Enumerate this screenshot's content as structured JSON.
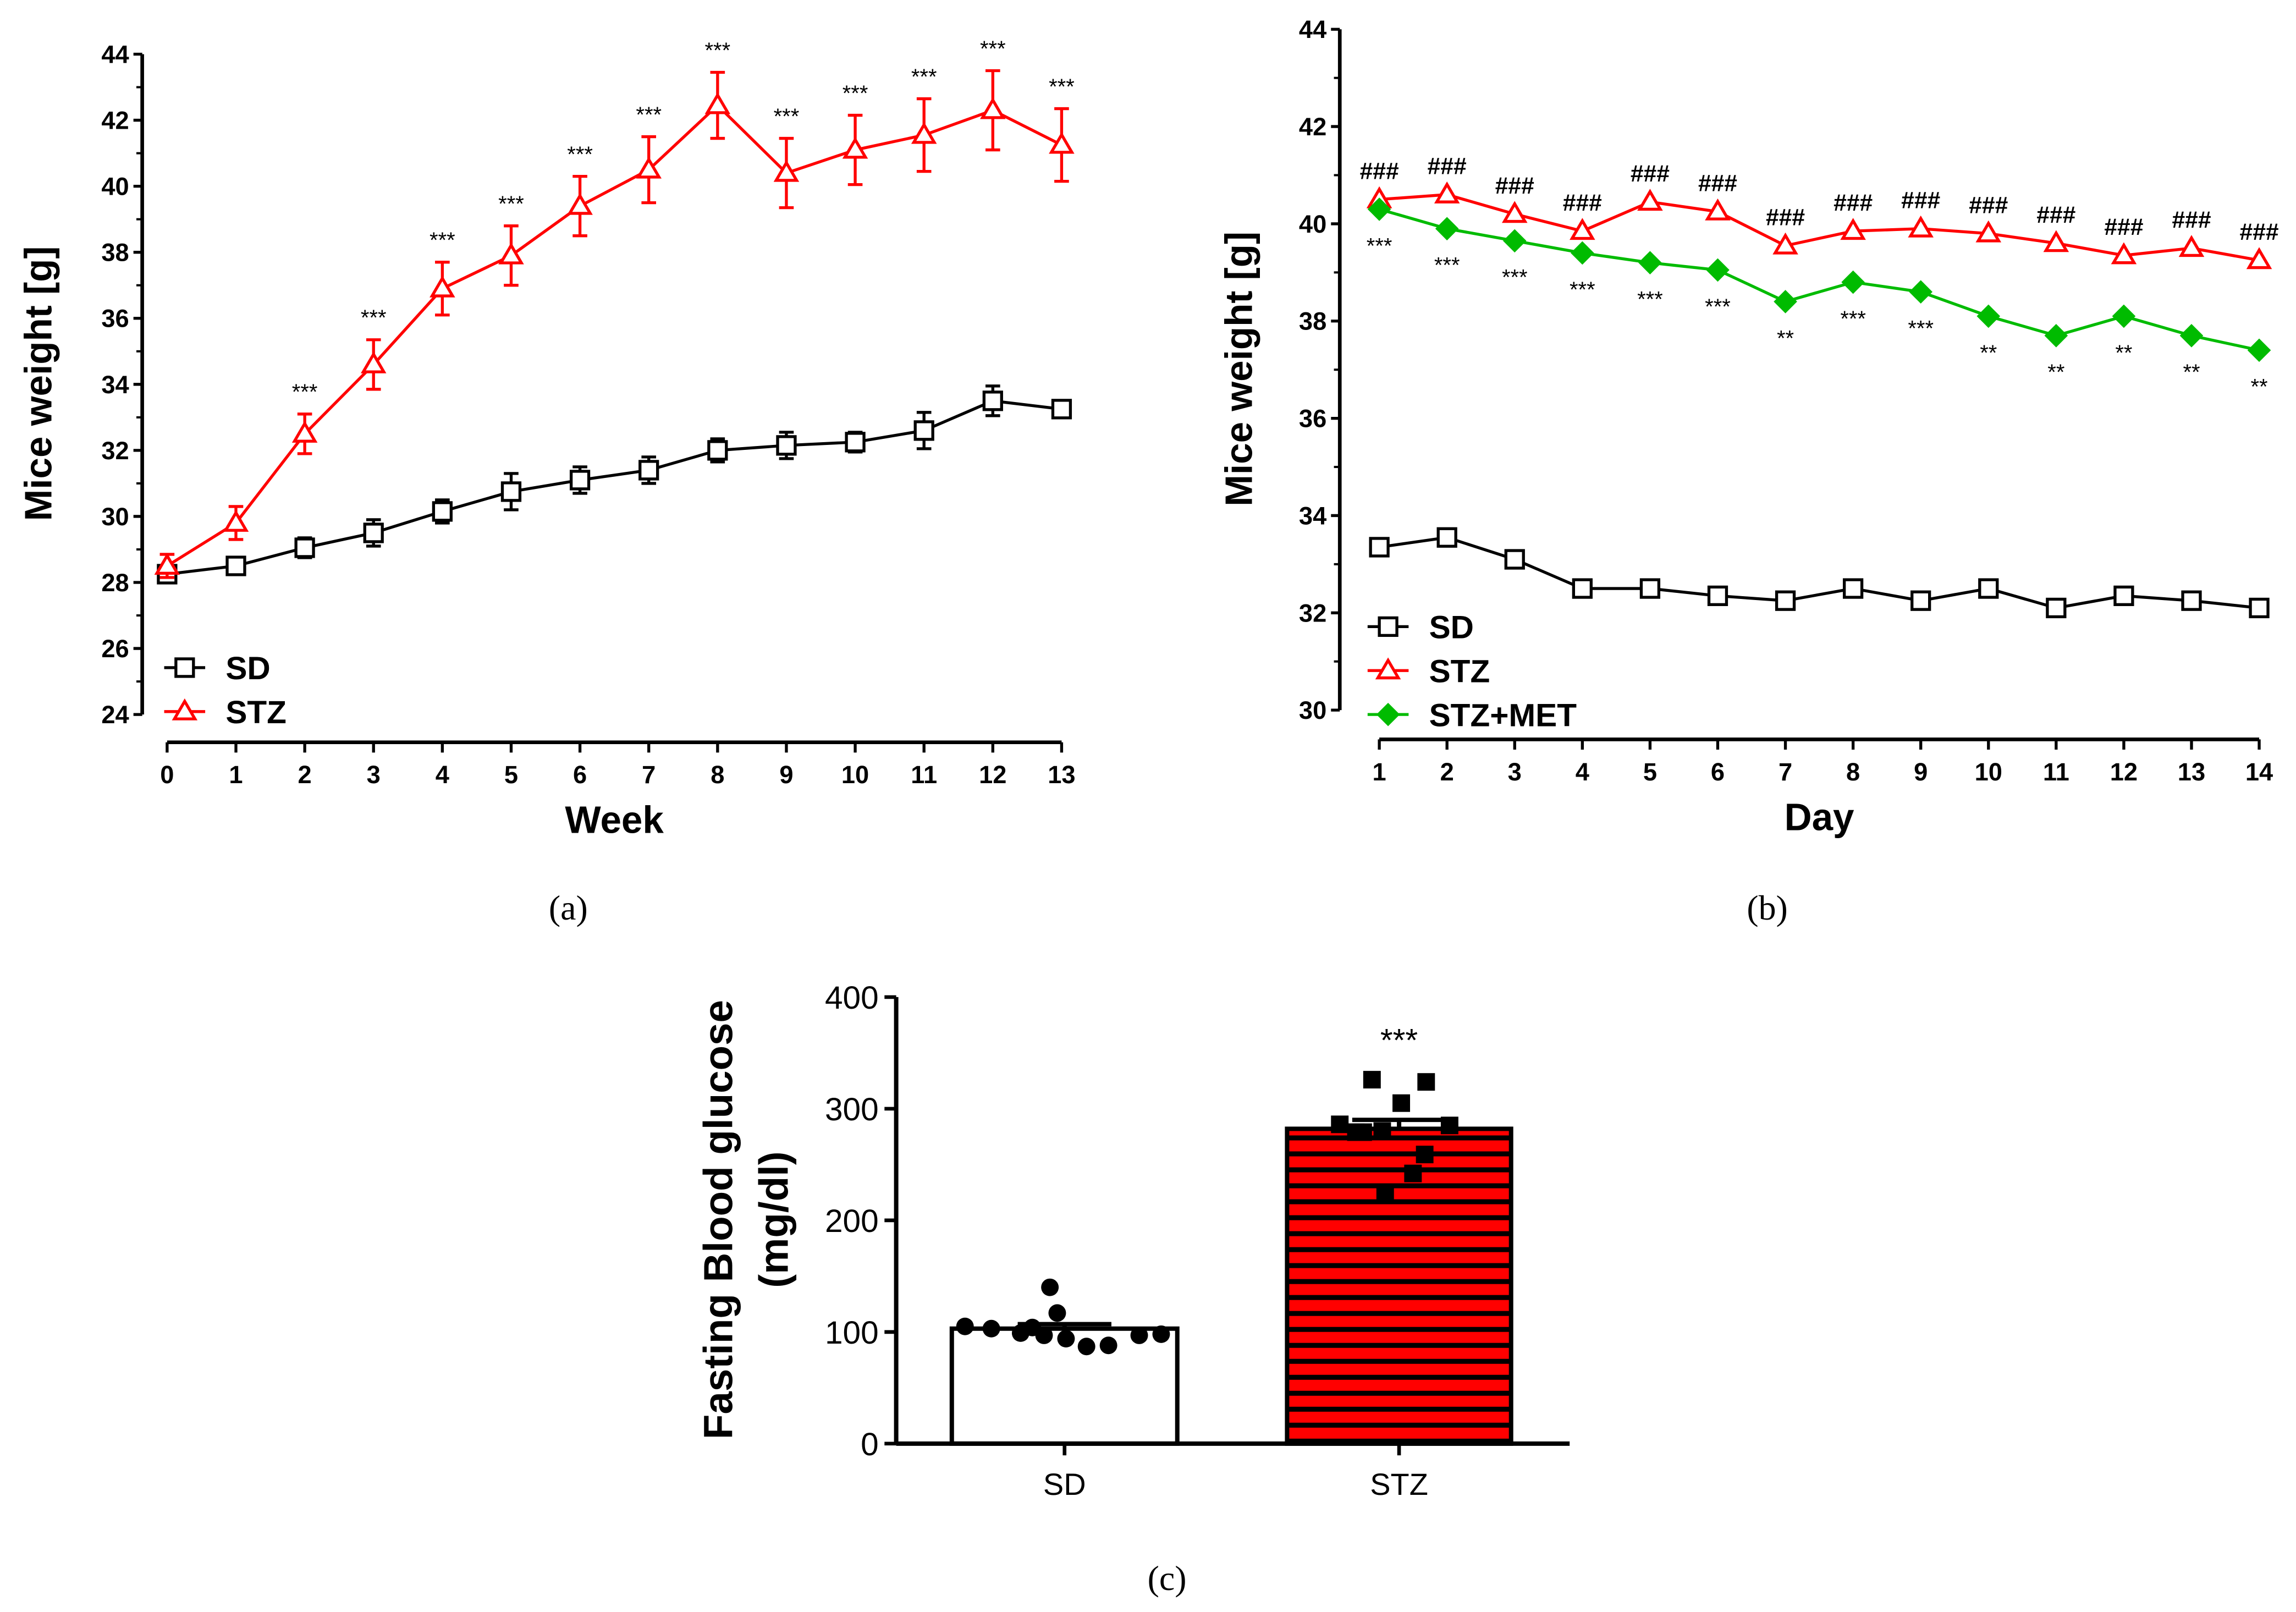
{
  "colors": {
    "sd": "#000000",
    "stz": "#ff0000",
    "met": "#00bb00"
  },
  "chart_data": [
    {
      "type": "line",
      "panel": "(a)",
      "title": "",
      "xlabel": "Week",
      "ylabel": "Mice weight [g]",
      "x": [
        0,
        1,
        2,
        3,
        4,
        5,
        6,
        7,
        8,
        9,
        10,
        11,
        12,
        13
      ],
      "xlim": [
        0,
        13
      ],
      "ylim": [
        24,
        44
      ],
      "yticks": [
        24,
        26,
        28,
        30,
        32,
        34,
        36,
        38,
        40,
        42,
        44
      ],
      "legend": "bottom-left",
      "series": [
        {
          "name": "SD",
          "marker": "open-square",
          "color": "#000000",
          "values": [
            28.25,
            28.5,
            29.05,
            29.5,
            30.15,
            30.75,
            31.1,
            31.4,
            32.0,
            32.15,
            32.25,
            32.6,
            33.5,
            33.25
          ],
          "errors": [
            0.25,
            0.15,
            0.3,
            0.4,
            0.35,
            0.55,
            0.4,
            0.4,
            0.35,
            0.4,
            0.3,
            0.55,
            0.45,
            0.25
          ]
        },
        {
          "name": "STZ",
          "marker": "open-triangle",
          "color": "#ff0000",
          "values": [
            28.5,
            29.8,
            32.5,
            34.6,
            36.9,
            37.9,
            39.4,
            40.5,
            42.45,
            40.4,
            41.1,
            41.55,
            42.3,
            41.25
          ],
          "errors": [
            0.35,
            0.5,
            0.6,
            0.75,
            0.8,
            0.9,
            0.9,
            1.0,
            1.0,
            1.05,
            1.05,
            1.1,
            1.2,
            1.1
          ]
        }
      ],
      "annotations": [
        "",
        "",
        "***",
        "***",
        "***",
        "***",
        "***",
        "***",
        "***",
        "***",
        "***",
        "***",
        "***",
        "***"
      ]
    },
    {
      "type": "line",
      "panel": "(b)",
      "title": "",
      "xlabel": "Day",
      "ylabel": "Mice weight [g]",
      "x": [
        1,
        2,
        3,
        4,
        5,
        6,
        7,
        8,
        9,
        10,
        11,
        12,
        13,
        14
      ],
      "xlim": [
        1,
        14
      ],
      "ylim": [
        30,
        44
      ],
      "yticks": [
        30,
        32,
        34,
        36,
        38,
        40,
        42,
        44
      ],
      "legend": "bottom-left",
      "series": [
        {
          "name": "SD",
          "marker": "open-square",
          "color": "#000000",
          "values": [
            33.35,
            33.55,
            33.1,
            32.5,
            32.5,
            32.35,
            32.25,
            32.5,
            32.25,
            32.5,
            32.1,
            32.35,
            32.25,
            32.1
          ]
        },
        {
          "name": "STZ",
          "marker": "open-triangle",
          "color": "#ff0000",
          "values": [
            40.5,
            40.6,
            40.2,
            39.85,
            40.45,
            40.25,
            39.55,
            39.85,
            39.9,
            39.8,
            39.6,
            39.35,
            39.5,
            39.25
          ]
        },
        {
          "name": "STZ+MET",
          "marker": "filled-diamond",
          "color": "#00bb00",
          "values": [
            40.3,
            39.9,
            39.65,
            39.4,
            39.2,
            39.05,
            38.4,
            38.8,
            38.6,
            38.1,
            37.7,
            38.1,
            37.7,
            37.4
          ]
        }
      ],
      "hash_annotations": [
        "###",
        "###",
        "###",
        "###",
        "###",
        "###",
        "###",
        "###",
        "###",
        "###",
        "###",
        "###",
        "###",
        "###"
      ],
      "star_annotations": [
        "***",
        "***",
        "***",
        "***",
        "***",
        "***",
        "**",
        "***",
        "***",
        "**",
        "**",
        "**",
        "**",
        "**"
      ]
    },
    {
      "type": "bar",
      "panel": "(c)",
      "title": "",
      "xlabel": "",
      "ylabel": "Fasting Blood glucose",
      "ylabel2": "(mg/dl)",
      "categories": [
        "SD",
        "STZ"
      ],
      "values": [
        103,
        282
      ],
      "errors": [
        4,
        8
      ],
      "ylim": [
        0,
        400
      ],
      "yticks": [
        0,
        100,
        200,
        300,
        400
      ],
      "points": [
        [
          105,
          103,
          99,
          97,
          94,
          87,
          88,
          97,
          98,
          104,
          140,
          117
        ],
        [
          326,
          324,
          305,
          286,
          279,
          280,
          279,
          285,
          259,
          242,
          224
        ]
      ],
      "annotations": [
        "",
        "***"
      ]
    }
  ]
}
